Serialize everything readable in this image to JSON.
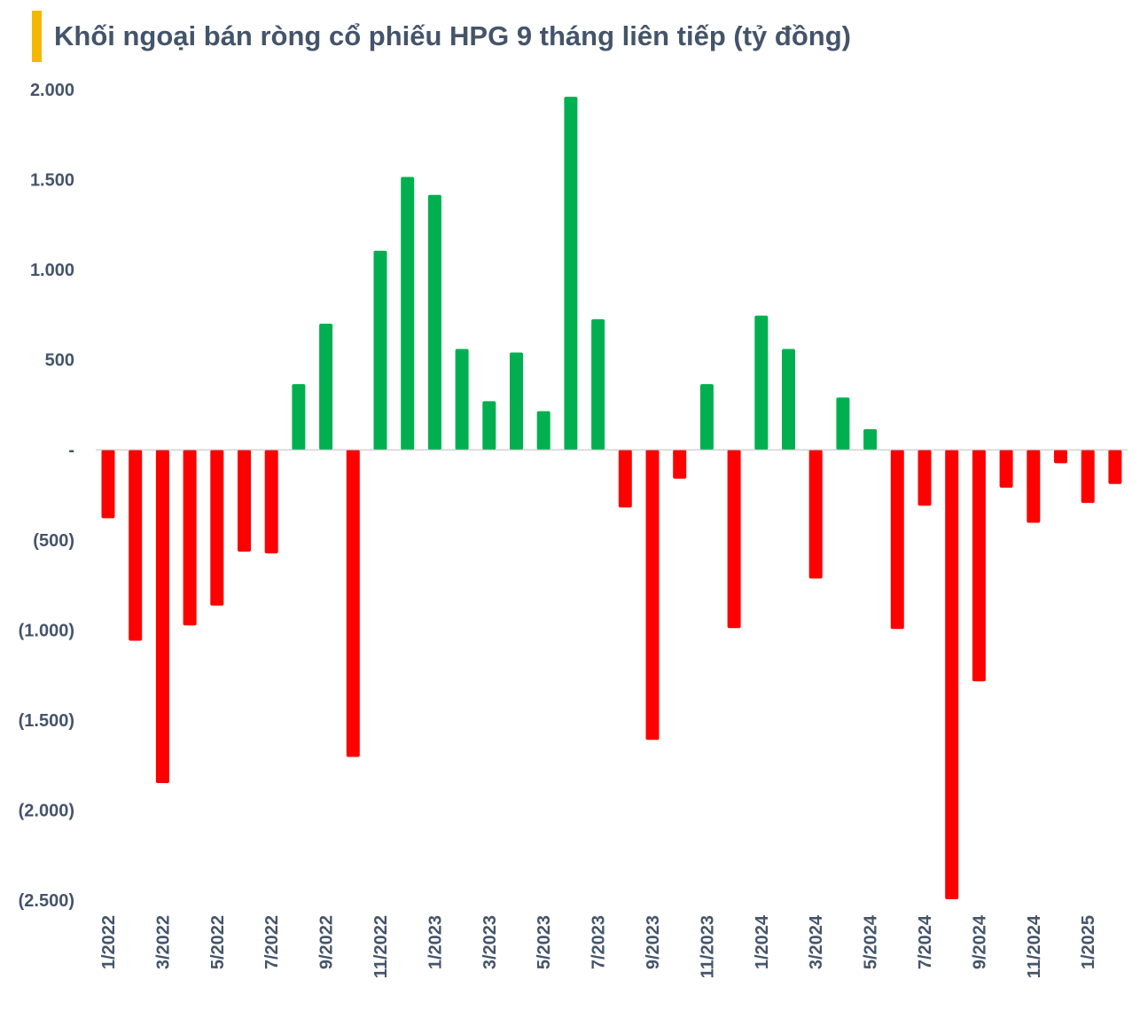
{
  "title": "Khối ngoại bán ròng cổ phiếu HPG 9 tháng liên tiếp (tỷ đồng)",
  "colors": {
    "accent": "#f5b800",
    "positive": "#00b050",
    "negative": "#ff0000",
    "text": "#44546a"
  },
  "chart_data": {
    "type": "bar",
    "title": "Khối ngoại bán ròng cổ phiếu HPG 9 tháng liên tiếp (tỷ đồng)",
    "xlabel": "",
    "ylabel": "",
    "ylim": [
      -2500,
      2000
    ],
    "yticks": [
      2000,
      1500,
      1000,
      500,
      0,
      -500,
      -1000,
      -1500,
      -2000,
      -2500
    ],
    "ytick_labels": [
      "2.000",
      "1.500",
      "1.000",
      "500",
      "-",
      "(500)",
      "(1.000)",
      "(1.500)",
      "(2.000)",
      "(2.500)"
    ],
    "categories": [
      "1/2022",
      "2/2022",
      "3/2022",
      "4/2022",
      "5/2022",
      "6/2022",
      "7/2022",
      "8/2022",
      "9/2022",
      "10/2022",
      "11/2022",
      "12/2022",
      "1/2023",
      "2/2023",
      "3/2023",
      "4/2023",
      "5/2023",
      "6/2023",
      "7/2023",
      "8/2023",
      "9/2023",
      "10/2023",
      "11/2023",
      "12/2023",
      "1/2024",
      "2/2024",
      "3/2024",
      "4/2024",
      "5/2024",
      "6/2024",
      "7/2024",
      "8/2024",
      "9/2024",
      "10/2024",
      "11/2024",
      "12/2024",
      "1/2025",
      "2/2025"
    ],
    "xtick_labels": [
      "1/2022",
      "",
      "3/2022",
      "",
      "5/2022",
      "",
      "7/2022",
      "",
      "9/2022",
      "",
      "11/2022",
      "",
      "1/2023",
      "",
      "3/2023",
      "",
      "5/2023",
      "",
      "7/2023",
      "",
      "9/2023",
      "",
      "11/2023",
      "",
      "1/2024",
      "",
      "3/2024",
      "",
      "5/2024",
      "",
      "7/2024",
      "",
      "9/2024",
      "",
      "11/2024",
      "",
      "1/2025",
      ""
    ],
    "values": [
      -380,
      -1060,
      -1850,
      -975,
      -865,
      -565,
      -575,
      365,
      700,
      -1705,
      1105,
      1515,
      1415,
      560,
      270,
      540,
      215,
      1960,
      725,
      -320,
      -1610,
      -160,
      365,
      -990,
      745,
      560,
      -715,
      290,
      115,
      -995,
      -310,
      -2495,
      -1285,
      -210,
      -405,
      -75,
      -295,
      -190
    ],
    "grid": false,
    "legend": "none"
  }
}
